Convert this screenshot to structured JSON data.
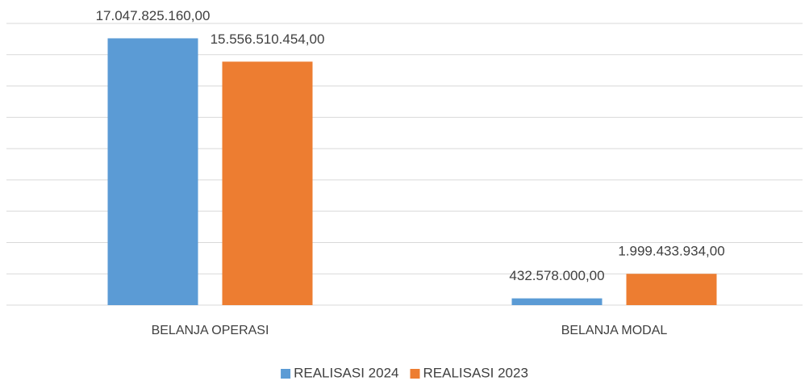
{
  "chart_data": {
    "type": "bar",
    "categories": [
      "BELANJA OPERASI",
      "BELANJA MODAL"
    ],
    "series": [
      {
        "name": "REALISASI 2024",
        "color": "#5b9bd5",
        "values": [
          17047825160,
          432578000
        ],
        "value_labels": [
          "17.047.825.160,00",
          "432.578.000,00"
        ]
      },
      {
        "name": "REALISASI 2023",
        "color": "#ed7d31",
        "values": [
          15556510454,
          1999433934
        ],
        "value_labels": [
          "15.556.510.454,00",
          "1.999.433.934,00"
        ]
      }
    ],
    "ylim": [
      0,
      18000000000
    ],
    "yticks": [
      0,
      2000000000,
      4000000000,
      6000000000,
      8000000000,
      10000000000,
      12000000000,
      14000000000,
      16000000000,
      18000000000
    ],
    "grid": true,
    "legend": "bottom"
  }
}
